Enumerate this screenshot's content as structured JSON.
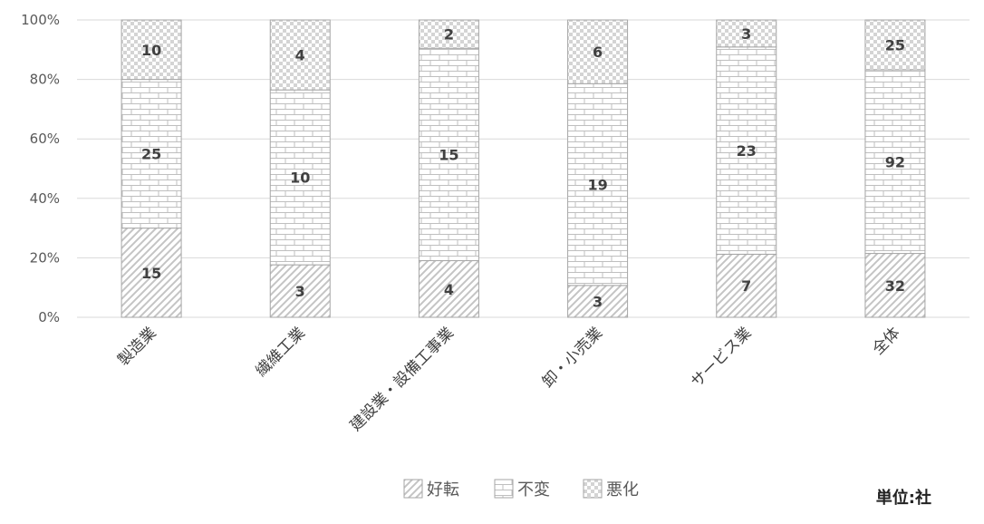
{
  "chart_data": {
    "type": "bar",
    "stacked": "percent",
    "categories": [
      "製造業",
      "繊維工業",
      "建設業・設備工事業",
      "卸・小売業",
      "サービス業",
      "全体"
    ],
    "series": [
      {
        "name": "好転",
        "pattern": "diagonal-hatch",
        "values": [
          15,
          3,
          4,
          3,
          7,
          32
        ]
      },
      {
        "name": "不変",
        "pattern": "brick",
        "values": [
          25,
          10,
          15,
          19,
          23,
          92
        ]
      },
      {
        "name": "悪化",
        "pattern": "checker",
        "values": [
          10,
          4,
          2,
          6,
          3,
          25
        ]
      }
    ],
    "y_ticks": [
      "0%",
      "20%",
      "40%",
      "60%",
      "80%",
      "100%"
    ],
    "ylim": [
      0,
      100
    ],
    "grid": true,
    "legend_position": "bottom",
    "unit_note": "単位:社",
    "colors": {
      "grid": "#d9d9d9",
      "bar_outline": "#a6a6a6",
      "pattern": "#bfbfbf",
      "text": "#404040"
    }
  }
}
